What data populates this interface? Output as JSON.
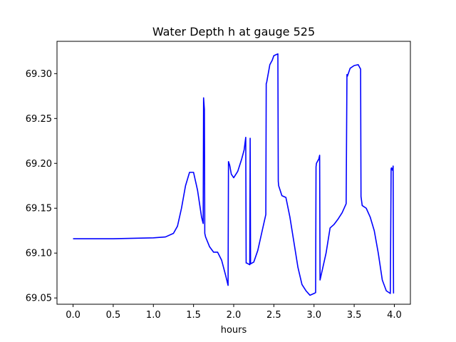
{
  "chart_data": {
    "type": "line",
    "title": "Water Depth h at gauge 525",
    "xlabel": "hours",
    "ylabel": "",
    "xlim": [
      -0.2,
      4.2
    ],
    "ylim": [
      69.043,
      69.336
    ],
    "xticks": [
      0.0,
      0.5,
      1.0,
      1.5,
      2.0,
      2.5,
      3.0,
      3.5,
      4.0
    ],
    "xtick_labels": [
      "0.0",
      "0.5",
      "1.0",
      "1.5",
      "2.0",
      "2.5",
      "3.0",
      "3.5",
      "4.0"
    ],
    "yticks": [
      69.05,
      69.1,
      69.15,
      69.2,
      69.25,
      69.3
    ],
    "ytick_labels": [
      "69.05",
      "69.10",
      "69.15",
      "69.20",
      "69.25",
      "69.30"
    ],
    "grid": false,
    "series": [
      {
        "color": "#0000ff",
        "x": [
          0.0,
          0.5,
          1.0,
          1.15,
          1.25,
          1.3,
          1.35,
          1.4,
          1.45,
          1.5,
          1.55,
          1.6,
          1.62,
          1.625,
          1.635,
          1.64,
          1.65,
          1.7,
          1.75,
          1.8,
          1.85,
          1.9,
          1.93,
          1.935,
          1.95,
          1.97,
          2.0,
          2.05,
          2.1,
          2.13,
          2.15,
          2.155,
          2.16,
          2.2,
          2.205,
          2.21,
          2.25,
          2.3,
          2.35,
          2.4,
          2.405,
          2.41,
          2.45,
          2.48,
          2.5,
          2.55,
          2.555,
          2.56,
          2.6,
          2.65,
          2.7,
          2.75,
          2.8,
          2.85,
          2.9,
          2.95,
          3.0,
          3.02,
          3.025,
          3.03,
          3.06,
          3.07,
          3.075,
          3.1,
          3.15,
          3.2,
          3.25,
          3.3,
          3.35,
          3.4,
          3.41,
          3.415,
          3.45,
          3.5,
          3.55,
          3.58,
          3.585,
          3.6,
          3.65,
          3.7,
          3.75,
          3.8,
          3.85,
          3.9,
          3.95,
          3.96,
          3.965,
          3.98,
          3.985,
          3.99
        ],
        "y": [
          69.116,
          69.116,
          69.117,
          69.118,
          69.122,
          69.13,
          69.15,
          69.175,
          69.19,
          69.19,
          69.17,
          69.14,
          69.133,
          69.273,
          69.26,
          69.122,
          69.118,
          69.107,
          69.101,
          69.101,
          69.092,
          69.075,
          69.064,
          69.202,
          69.198,
          69.188,
          69.184,
          69.191,
          69.205,
          69.215,
          69.229,
          69.089,
          69.089,
          69.087,
          69.228,
          69.088,
          69.09,
          69.103,
          69.123,
          69.143,
          69.289,
          69.29,
          69.31,
          69.315,
          69.32,
          69.322,
          69.18,
          69.175,
          69.164,
          69.162,
          69.14,
          69.112,
          69.084,
          69.065,
          69.058,
          69.053,
          69.055,
          69.056,
          69.196,
          69.2,
          69.205,
          69.209,
          69.07,
          69.08,
          69.1,
          69.128,
          69.132,
          69.138,
          69.145,
          69.155,
          69.299,
          69.297,
          69.306,
          69.309,
          69.31,
          69.305,
          69.163,
          69.153,
          69.15,
          69.14,
          69.125,
          69.1,
          69.07,
          69.058,
          69.055,
          69.194,
          69.195,
          69.192,
          69.197,
          69.055
        ]
      }
    ]
  }
}
